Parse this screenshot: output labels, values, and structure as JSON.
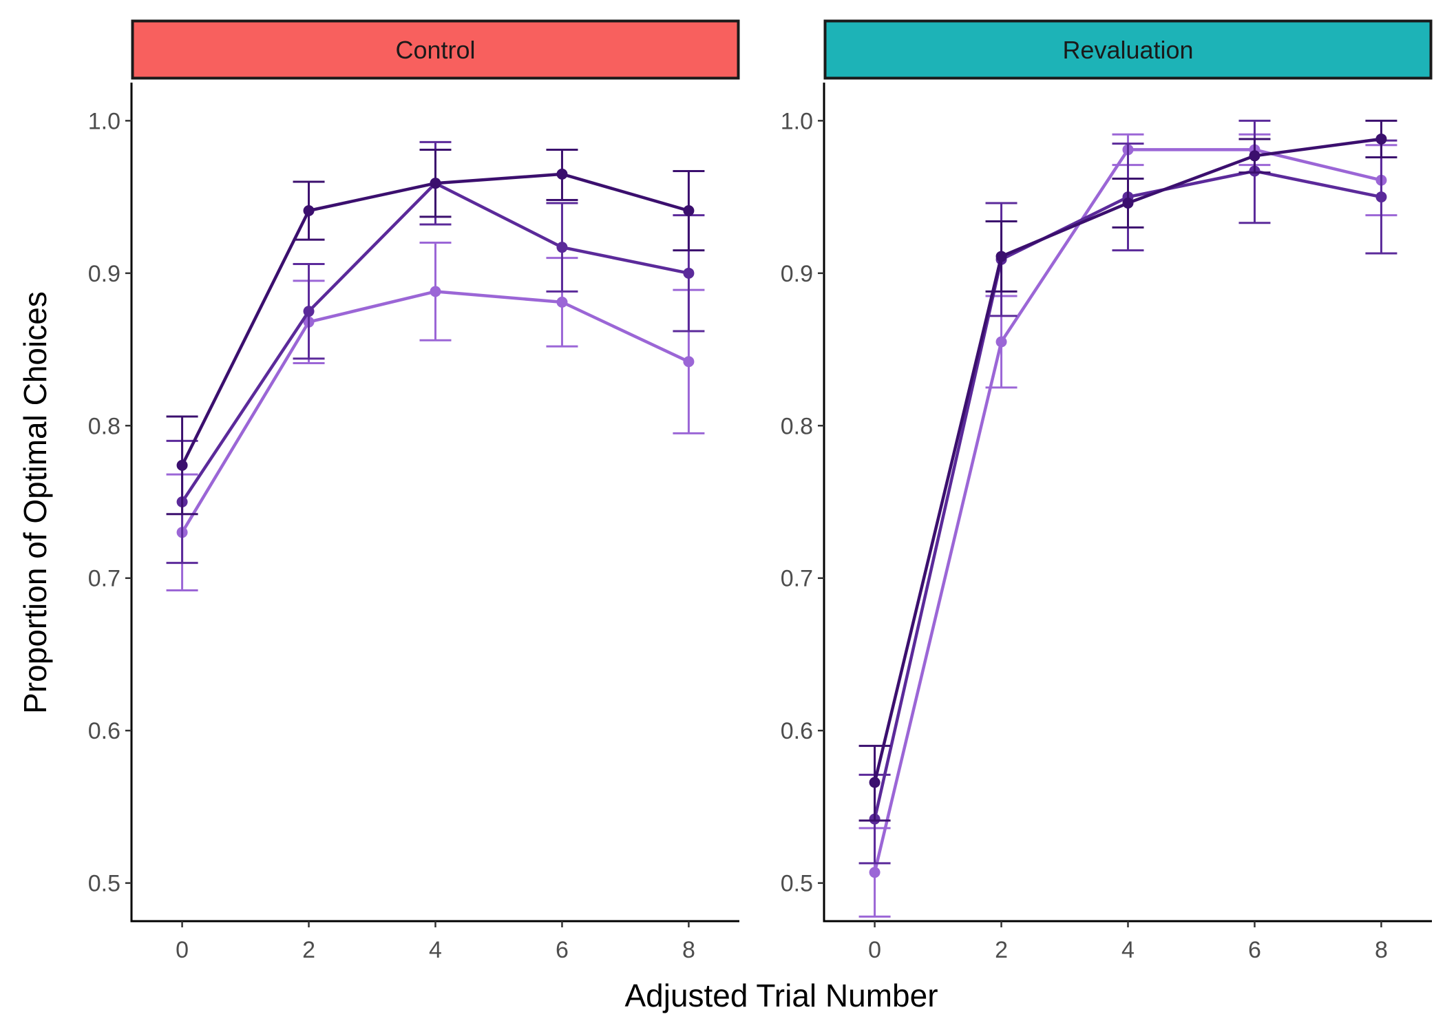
{
  "chart_data": {
    "type": "line",
    "xlabel": "Adjusted Trial Number",
    "ylabel": "Proportion of Optimal Choices",
    "xlim": [
      -0.8,
      8.8
    ],
    "ylim": [
      0.475,
      1.025
    ],
    "x_ticks": [
      "0",
      "2",
      "4",
      "6",
      "8"
    ],
    "y_ticks": [
      "0.5",
      "0.6",
      "0.7",
      "0.8",
      "0.9",
      "1.0"
    ],
    "grid": false,
    "legend": "none",
    "x": [
      0,
      2,
      4,
      6,
      8
    ],
    "series_colors": [
      "#3b0f6e",
      "#5b2a9a",
      "#9b66d6"
    ],
    "panels": [
      {
        "label": "Control",
        "strip_color": "#f8605e",
        "series": [
          {
            "values": [
              0.774,
              0.941,
              0.959,
              0.965,
              0.941
            ],
            "lower": [
              0.742,
              0.922,
              0.937,
              0.948,
              0.915
            ],
            "upper": [
              0.806,
              0.96,
              0.981,
              0.981,
              0.967
            ]
          },
          {
            "values": [
              0.75,
              0.875,
              0.959,
              0.917,
              0.9
            ],
            "lower": [
              0.71,
              0.844,
              0.932,
              0.888,
              0.862
            ],
            "upper": [
              0.79,
              0.906,
              0.986,
              0.946,
              0.938
            ]
          },
          {
            "values": [
              0.73,
              0.868,
              0.888,
              0.881,
              0.842
            ],
            "lower": [
              0.692,
              0.841,
              0.856,
              0.852,
              0.795
            ],
            "upper": [
              0.768,
              0.895,
              0.92,
              0.91,
              0.889
            ]
          }
        ]
      },
      {
        "label": "Revaluation",
        "strip_color": "#1db3b7",
        "series": [
          {
            "values": [
              0.566,
              0.911,
              0.946,
              0.977,
              0.988
            ],
            "lower": [
              0.541,
              0.888,
              0.93,
              0.966,
              0.976
            ],
            "upper": [
              0.59,
              0.934,
              0.962,
              0.988,
              1.0
            ]
          },
          {
            "values": [
              0.542,
              0.909,
              0.95,
              0.967,
              0.95
            ],
            "lower": [
              0.513,
              0.872,
              0.915,
              0.933,
              0.913
            ],
            "upper": [
              0.571,
              0.946,
              0.985,
              1.0,
              0.987
            ]
          },
          {
            "values": [
              0.507,
              0.855,
              0.981,
              0.981,
              0.961
            ],
            "lower": [
              0.478,
              0.825,
              0.971,
              0.971,
              0.938
            ],
            "upper": [
              0.536,
              0.885,
              0.991,
              0.991,
              0.984
            ]
          }
        ]
      }
    ]
  }
}
